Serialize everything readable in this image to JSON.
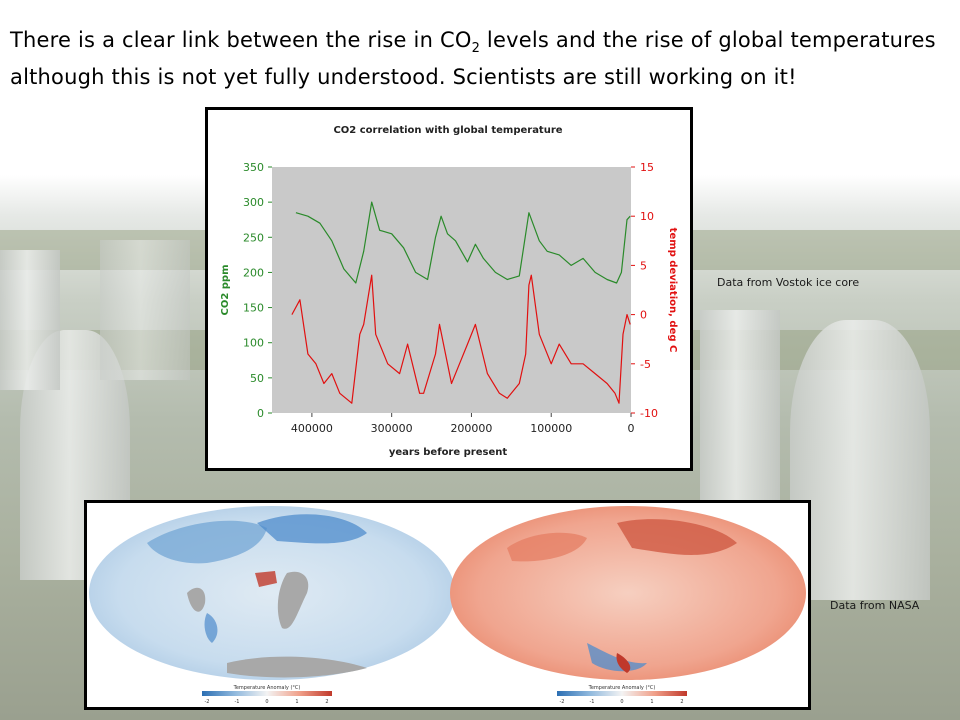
{
  "slide": {
    "text_before": "There is a clear link between the rise in CO",
    "text_sub": "2",
    "text_after": " levels and the rise of global temperatures although this is not yet fully understood. Scientists are still working on it!",
    "note_vostok": "Data from Vostok ice core",
    "note_nasa": "Data from NASA"
  },
  "colors": {
    "co2_series": "#2a8a2a",
    "temp_series": "#e11010",
    "plot_background": "#c9c9c9",
    "anomaly_cold": "#2c6fb3",
    "anomaly_warm": "#c0392b",
    "land_nodata": "#a8a8a8"
  },
  "chart_data": [
    {
      "type": "line",
      "title": "CO2 correlation with global temperature",
      "xlabel": "years before present",
      "ylabel": "CO2 ppm",
      "y2label": "temp deviation, deg C",
      "xlim": [
        450000,
        0
      ],
      "x_ticks": [
        "400000",
        "300000",
        "200000",
        "100000",
        "0"
      ],
      "ylim": [
        0,
        350
      ],
      "y_ticks": [
        "0",
        "50",
        "100",
        "150",
        "200",
        "250",
        "300",
        "350"
      ],
      "y2lim": [
        -10,
        15
      ],
      "y2_ticks": [
        "-10",
        "-5",
        "0",
        "5",
        "10",
        "15"
      ],
      "grid": false,
      "series": [
        {
          "axis": "left",
          "x": [
            420000,
            405000,
            390000,
            375000,
            360000,
            345000,
            335000,
            325000,
            315000,
            300000,
            285000,
            270000,
            255000,
            245000,
            238000,
            230000,
            220000,
            205000,
            195000,
            185000,
            170000,
            155000,
            140000,
            128000,
            115000,
            105000,
            90000,
            75000,
            60000,
            45000,
            30000,
            18000,
            12000,
            5000,
            1000
          ],
          "values": [
            285,
            280,
            270,
            245,
            205,
            185,
            230,
            300,
            260,
            255,
            235,
            200,
            190,
            250,
            280,
            255,
            245,
            215,
            240,
            220,
            200,
            190,
            195,
            285,
            245,
            230,
            225,
            210,
            220,
            200,
            190,
            185,
            200,
            275,
            280
          ]
        },
        {
          "axis": "right",
          "x": [
            425000,
            415000,
            405000,
            395000,
            385000,
            375000,
            365000,
            350000,
            340000,
            335000,
            325000,
            320000,
            305000,
            290000,
            280000,
            265000,
            260000,
            245000,
            240000,
            225000,
            215000,
            205000,
            195000,
            180000,
            165000,
            155000,
            140000,
            132000,
            128000,
            125000,
            115000,
            100000,
            90000,
            75000,
            60000,
            45000,
            30000,
            20000,
            15000,
            10000,
            5000,
            1000
          ],
          "values": [
            0,
            1.5,
            -4,
            -5,
            -7,
            -6,
            -8,
            -9,
            -2,
            -1,
            4,
            -2,
            -5,
            -6,
            -3,
            -8,
            -8,
            -4,
            -1,
            -7,
            -5,
            -3,
            -1,
            -6,
            -8,
            -8.5,
            -7,
            -4,
            3,
            4,
            -2,
            -5,
            -3,
            -5,
            -5,
            -6,
            -7,
            -8,
            -9,
            -2,
            0,
            -1
          ]
        }
      ]
    },
    {
      "type": "heatmap",
      "xlabel": "Temperature Anomaly (°C)",
      "color_scale_ticks": [
        "-2",
        "-1",
        "0",
        "1",
        "2"
      ]
    },
    {
      "type": "heatmap",
      "xlabel": "Temperature Anomaly (°C)",
      "color_scale_ticks": [
        "-2",
        "-1",
        "0",
        "1",
        "2"
      ]
    }
  ]
}
